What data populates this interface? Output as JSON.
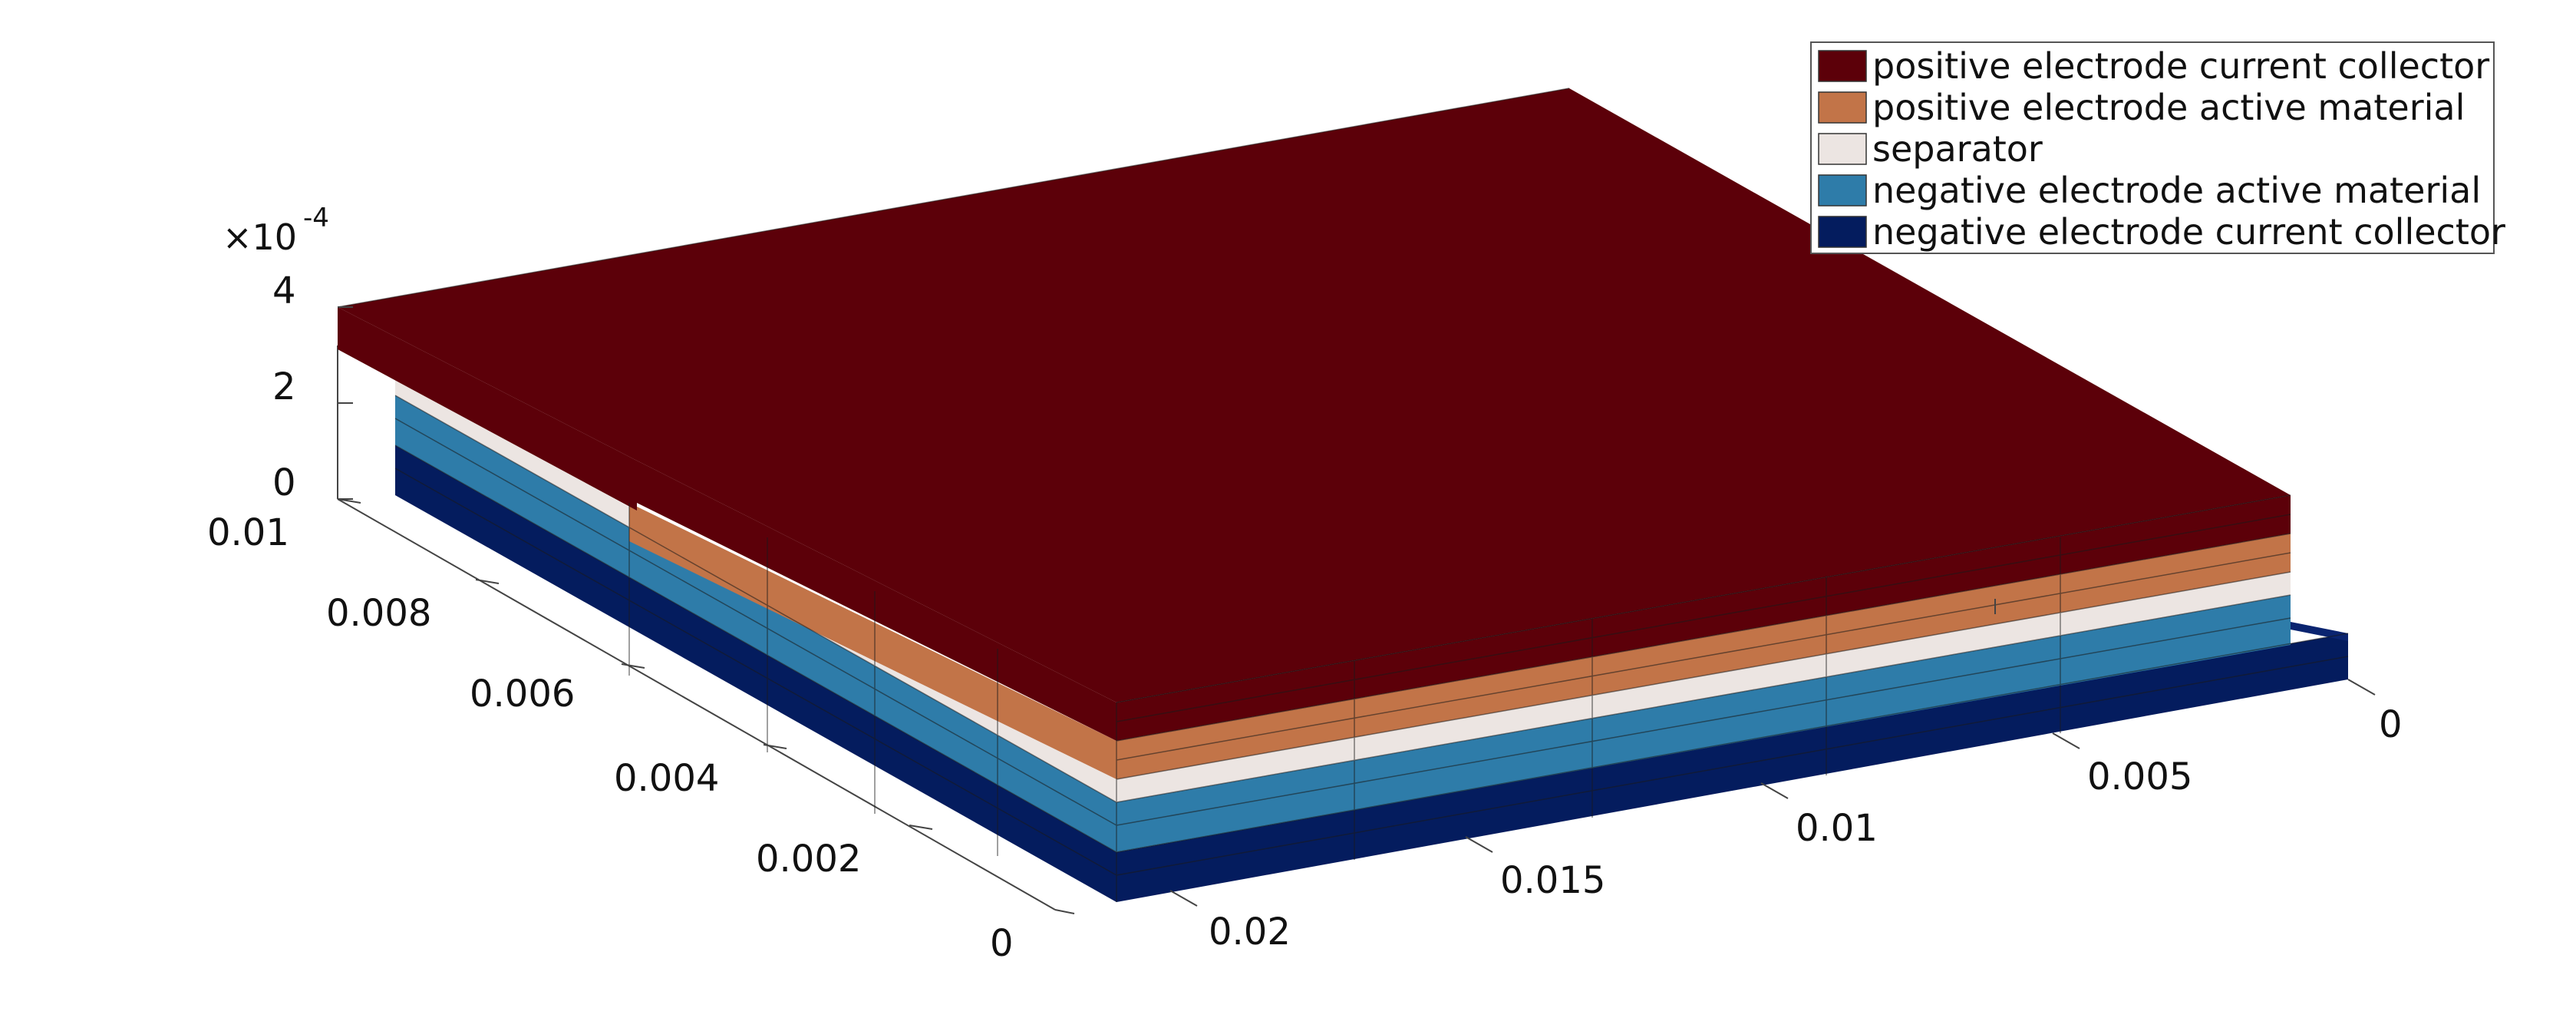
{
  "figure": {
    "legend": {
      "location": "top-right",
      "items": [
        {
          "label": "positive electrode current collector",
          "color": "#5c0009"
        },
        {
          "label": "positive electrode active material",
          "color": "#c27448"
        },
        {
          "label": "separator",
          "color": "#ece5e2"
        },
        {
          "label": "negative electrode active material",
          "color": "#2e7ca9"
        },
        {
          "label": "negative electrode current collector",
          "color": "#041c5e"
        }
      ]
    },
    "axes": {
      "x_ticks": [
        "0",
        "0.005",
        "0.01",
        "0.015",
        "0.02"
      ],
      "y_ticks": [
        "0",
        "0.002",
        "0.004",
        "0.006",
        "0.008",
        "0.01"
      ],
      "z_ticks": [
        "0",
        "2",
        "4"
      ],
      "z_exponent": {
        "base": "×10",
        "power": "-4"
      },
      "x_range": [
        0,
        0.02
      ],
      "y_range": [
        0,
        0.01
      ],
      "z_range": [
        0,
        0.0004
      ]
    }
  }
}
